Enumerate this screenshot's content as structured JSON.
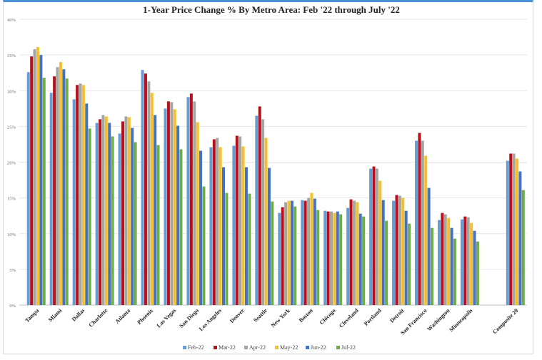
{
  "chart_data": {
    "type": "bar",
    "title": "1-Year Price Change % By Metro Area: Feb '22 through July '22",
    "xlabel": "",
    "ylabel": "",
    "ylim": [
      0,
      40
    ],
    "yticks": [
      "0%",
      "5%",
      "10%",
      "15%",
      "20%",
      "25%",
      "30%",
      "35%",
      "40%"
    ],
    "grid": true,
    "legend_position": "bottom",
    "categories": [
      "Tampa",
      "Miami",
      "Dallas",
      "Charlotte",
      "Atlanta",
      "Phoenix",
      "Las Vegas",
      "San Diego",
      "Los Angeles",
      "Denver",
      "Seattle",
      "New York",
      "Boston",
      "Chicago",
      "Cleveland",
      "Portland",
      "Detroit",
      "San Francisco",
      "Washington",
      "Minneapolis",
      "",
      "Composite 20"
    ],
    "series": [
      {
        "name": "Feb-22",
        "color": "#6a9bd1",
        "values": [
          32.6,
          29.7,
          28.8,
          25.5,
          24.0,
          32.9,
          27.5,
          29.1,
          22.1,
          22.3,
          26.5,
          12.9,
          14.7,
          13.2,
          13.6,
          19.1,
          14.6,
          23.0,
          11.9,
          12.0,
          null,
          20.2
        ]
      },
      {
        "name": "Mar-22",
        "color": "#b5121b",
        "values": [
          34.8,
          32.0,
          30.8,
          26.0,
          25.7,
          32.4,
          28.5,
          29.6,
          23.2,
          23.7,
          27.8,
          13.7,
          14.6,
          13.1,
          14.8,
          19.4,
          15.4,
          24.1,
          12.9,
          12.4,
          null,
          21.2
        ]
      },
      {
        "name": "Apr-22",
        "color": "#a5a5a5",
        "values": [
          35.8,
          33.3,
          31.0,
          26.6,
          26.4,
          31.3,
          28.4,
          28.5,
          23.4,
          23.6,
          26.0,
          14.4,
          15.0,
          13.1,
          14.6,
          19.1,
          15.3,
          23.0,
          12.7,
          12.3,
          null,
          21.2
        ]
      },
      {
        "name": "May-22",
        "color": "#f5c02a",
        "values": [
          36.1,
          34.0,
          30.8,
          26.4,
          26.3,
          29.7,
          27.4,
          25.6,
          22.1,
          22.2,
          23.4,
          14.6,
          15.7,
          12.9,
          14.4,
          17.4,
          15.0,
          20.9,
          12.2,
          11.5,
          null,
          20.5
        ]
      },
      {
        "name": "Jun-22",
        "color": "#4472c4",
        "values": [
          35.0,
          33.0,
          28.2,
          25.5,
          24.8,
          26.6,
          25.1,
          21.6,
          19.3,
          19.3,
          19.2,
          14.6,
          14.9,
          13.1,
          12.8,
          14.7,
          13.2,
          16.4,
          10.8,
          10.4,
          null,
          18.7
        ]
      },
      {
        "name": "Jul-22",
        "color": "#70ad47",
        "values": [
          31.8,
          31.7,
          24.7,
          23.6,
          22.8,
          22.4,
          21.8,
          16.6,
          15.7,
          15.6,
          14.5,
          13.8,
          13.3,
          12.7,
          12.4,
          11.8,
          11.4,
          10.8,
          9.3,
          8.9,
          null,
          16.1
        ]
      }
    ]
  }
}
